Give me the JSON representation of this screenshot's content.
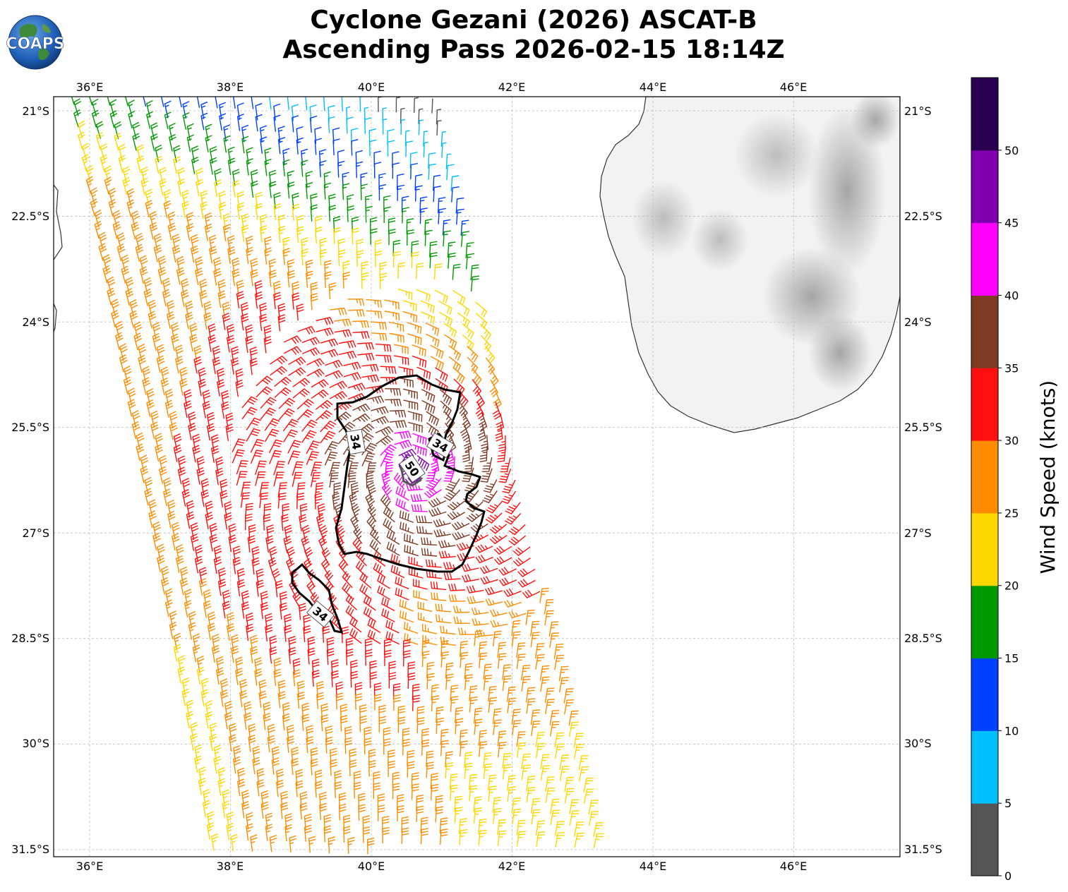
{
  "figure": {
    "title_line1": "Cyclone Gezani (2026) ASCAT-B",
    "title_line2": "Ascending Pass 2026-02-15 18:14Z",
    "logo_text": "COAPS"
  },
  "map": {
    "lon_range": [
      35.5,
      47.5
    ],
    "lat_range": [
      -31.6,
      -20.8
    ],
    "lon_ticks": [
      36,
      38,
      40,
      42,
      44,
      46
    ],
    "lon_tick_labels": [
      "36°E",
      "38°E",
      "40°E",
      "42°E",
      "44°E",
      "46°E"
    ],
    "lat_ticks": [
      -21,
      -22.5,
      -24,
      -25.5,
      -27,
      -28.5,
      -30,
      -31.5
    ],
    "lat_tick_labels": [
      "21°S",
      "22.5°S",
      "24°S",
      "25.5°S",
      "27°S",
      "28.5°S",
      "30°S",
      "31.5°S"
    ],
    "gridlines": true,
    "land_feature": "Madagascar (southern part), grayscale terrain shading",
    "cyclone_center": {
      "lon": 40.6,
      "lat": -26.1
    },
    "contours": [
      {
        "label": "34",
        "unit": "kt"
      },
      {
        "label": "34",
        "unit": "kt"
      },
      {
        "label": "50",
        "unit": "kt"
      },
      {
        "label": "34",
        "unit": "kt"
      }
    ]
  },
  "colorbar": {
    "label": "Wind Speed (knots)",
    "tick_values": [
      0,
      5,
      10,
      15,
      20,
      25,
      30,
      35,
      40,
      45,
      50
    ],
    "tick_labels": [
      "0",
      "5",
      "10",
      "15",
      "20",
      "25",
      "30",
      "35",
      "40",
      "45",
      "50"
    ],
    "bins": [
      {
        "min": 0,
        "max": 5,
        "color": "#555555"
      },
      {
        "min": 5,
        "max": 10,
        "color": "#00bfff"
      },
      {
        "min": 10,
        "max": 15,
        "color": "#0040ff"
      },
      {
        "min": 15,
        "max": 20,
        "color": "#009900"
      },
      {
        "min": 20,
        "max": 25,
        "color": "#ffd700"
      },
      {
        "min": 25,
        "max": 30,
        "color": "#ff8c00"
      },
      {
        "min": 30,
        "max": 35,
        "color": "#ff0f0f"
      },
      {
        "min": 35,
        "max": 40,
        "color": "#7f3a24"
      },
      {
        "min": 40,
        "max": 45,
        "color": "#ff00ff"
      },
      {
        "min": 45,
        "max": 50,
        "color": "#8000b0"
      },
      {
        "min": 50,
        "max": 55,
        "color": "#2a0050"
      }
    ]
  }
}
